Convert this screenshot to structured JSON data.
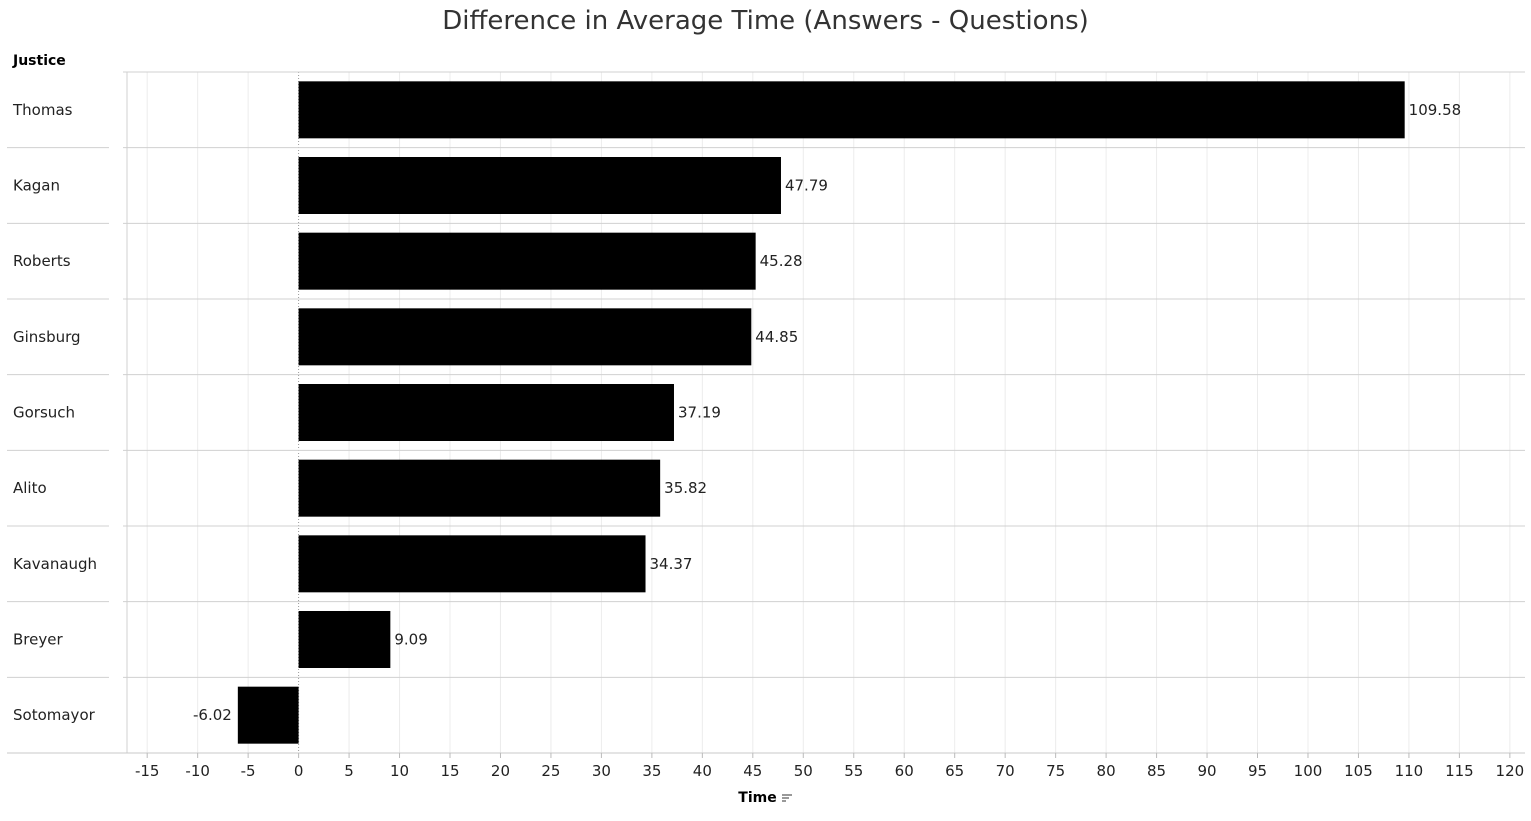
{
  "chart_data": {
    "type": "bar",
    "orientation": "horizontal",
    "title": "Difference in Average Time (Answers - Questions)",
    "row_header": "Justice",
    "xlabel": "Time",
    "categories": [
      "Thomas",
      "Kagan",
      "Roberts",
      "Ginsburg",
      "Gorsuch",
      "Alito",
      "Kavanaugh",
      "Breyer",
      "Sotomayor"
    ],
    "values": [
      109.58,
      47.79,
      45.28,
      44.85,
      37.19,
      35.82,
      34.37,
      9.09,
      -6.02
    ],
    "value_labels": [
      "109.58",
      "47.79",
      "45.28",
      "44.85",
      "37.19",
      "35.82",
      "34.37",
      "9.09",
      "-6.02"
    ],
    "xlim": [
      -17,
      121.5
    ],
    "xticks": [
      -15,
      -10,
      -5,
      0,
      5,
      10,
      15,
      20,
      25,
      30,
      35,
      40,
      45,
      50,
      55,
      60,
      65,
      70,
      75,
      80,
      85,
      90,
      95,
      100,
      105,
      110,
      115,
      120
    ],
    "bar_color": "#000000",
    "grid": true
  }
}
